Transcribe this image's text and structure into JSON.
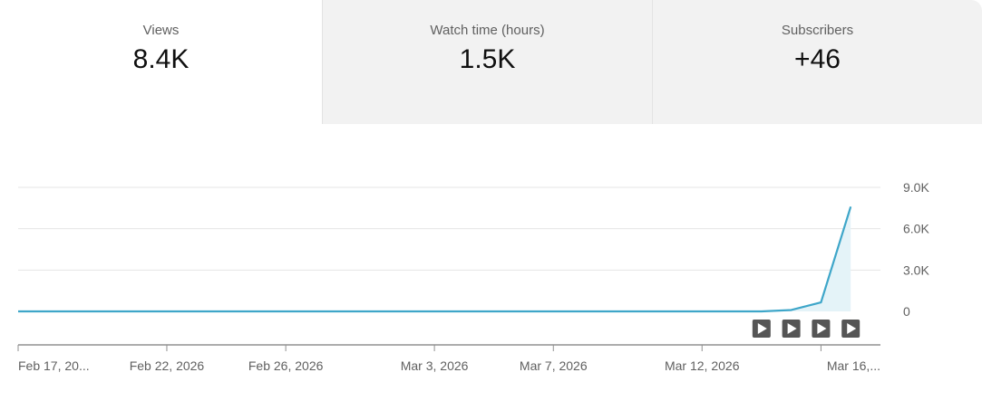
{
  "tabs": [
    {
      "label": "Views",
      "value": "8.4K",
      "selected": true
    },
    {
      "label": "Watch time (hours)",
      "value": "1.5K",
      "selected": false
    },
    {
      "label": "Subscribers",
      "value": "+46",
      "selected": false
    }
  ],
  "colors": {
    "line": "#3ea6c9",
    "fill": "#e4f3f8",
    "grid": "#e5e5e5",
    "axis": "#909090",
    "tick_text": "#606060",
    "marker_bg": "#555555",
    "marker_fg": "#ffffff",
    "inactive_tab_bg": "#f2f2f2"
  },
  "icons": {
    "video_marker": "play-icon"
  },
  "chart_data": {
    "type": "area",
    "metric": "Views",
    "x_start": "Feb 17, 2026",
    "x_end": "Mar 18, 2026",
    "x_tick_labels": [
      "Feb 17, 20...",
      "Feb 22, 2026",
      "Feb 26, 2026",
      "Mar 3, 2026",
      "Mar 7, 2026",
      "Mar 12, 2026",
      "Mar 16,..."
    ],
    "x_tick_dates": [
      "2026-02-17",
      "2026-02-22",
      "2026-02-26",
      "2026-03-03",
      "2026-03-07",
      "2026-03-12",
      "2026-03-16"
    ],
    "y_tick_labels": [
      "9.0K",
      "6.0K",
      "3.0K",
      "0"
    ],
    "y_tick_values": [
      9000,
      6000,
      3000,
      0
    ],
    "ylim": [
      0,
      9000
    ],
    "grid": true,
    "y_axis_side": "right",
    "points": [
      {
        "x": "2026-02-17",
        "y": 0
      },
      {
        "x": "2026-02-18",
        "y": 0
      },
      {
        "x": "2026-02-19",
        "y": 0
      },
      {
        "x": "2026-02-20",
        "y": 0
      },
      {
        "x": "2026-02-21",
        "y": 0
      },
      {
        "x": "2026-02-22",
        "y": 0
      },
      {
        "x": "2026-02-23",
        "y": 0
      },
      {
        "x": "2026-02-24",
        "y": 0
      },
      {
        "x": "2026-02-25",
        "y": 0
      },
      {
        "x": "2026-02-26",
        "y": 0
      },
      {
        "x": "2026-02-27",
        "y": 0
      },
      {
        "x": "2026-02-28",
        "y": 0
      },
      {
        "x": "2026-03-01",
        "y": 0
      },
      {
        "x": "2026-03-02",
        "y": 0
      },
      {
        "x": "2026-03-03",
        "y": 0
      },
      {
        "x": "2026-03-04",
        "y": 0
      },
      {
        "x": "2026-03-05",
        "y": 0
      },
      {
        "x": "2026-03-06",
        "y": 0
      },
      {
        "x": "2026-03-07",
        "y": 0
      },
      {
        "x": "2026-03-08",
        "y": 0
      },
      {
        "x": "2026-03-09",
        "y": 0
      },
      {
        "x": "2026-03-10",
        "y": 0
      },
      {
        "x": "2026-03-11",
        "y": 0
      },
      {
        "x": "2026-03-12",
        "y": 0
      },
      {
        "x": "2026-03-13",
        "y": 0
      },
      {
        "x": "2026-03-14",
        "y": 0
      },
      {
        "x": "2026-03-15",
        "y": 100
      },
      {
        "x": "2026-03-16",
        "y": 650
      },
      {
        "x": "2026-03-17",
        "y": 7600
      }
    ],
    "video_markers": [
      "2026-03-14",
      "2026-03-15",
      "2026-03-16",
      "2026-03-17"
    ]
  }
}
